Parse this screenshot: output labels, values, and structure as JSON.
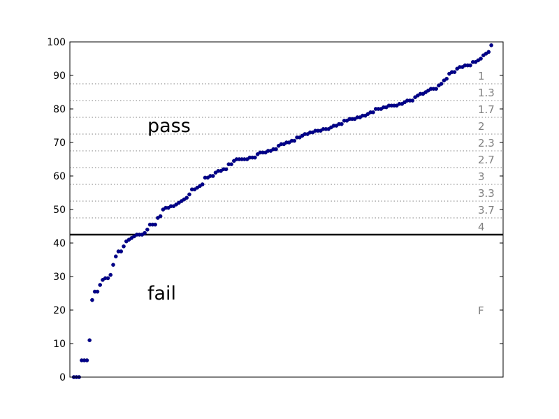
{
  "chart_data": {
    "type": "scatter",
    "title": "",
    "xlabel": "",
    "ylabel": "",
    "ylim": [
      0,
      100
    ],
    "xlim": [
      0,
      165
    ],
    "x_ticks_visible": false,
    "y_ticks": [
      "0",
      "10",
      "20",
      "30",
      "40",
      "50",
      "60",
      "70",
      "80",
      "90",
      "100"
    ],
    "grid": false,
    "colors": {
      "points": "#00008b",
      "threshold": "#000000",
      "grade_lines": "#999999",
      "grade_text": "#808080"
    },
    "pass_threshold": 42.5,
    "regions": [
      {
        "text": "pass",
        "y": 75
      },
      {
        "text": "fail",
        "y": 25
      }
    ],
    "grade_boundaries": [
      87.5,
      82.5,
      77.5,
      72.5,
      67.5,
      62.5,
      57.5,
      52.5,
      47.5
    ],
    "grade_labels": [
      {
        "text": "1",
        "y": 90
      },
      {
        "text": "1.3",
        "y": 85
      },
      {
        "text": "1.7",
        "y": 80
      },
      {
        "text": "2",
        "y": 75
      },
      {
        "text": "2.3",
        "y": 70
      },
      {
        "text": "2.7",
        "y": 65
      },
      {
        "text": "3",
        "y": 60
      },
      {
        "text": "3.3",
        "y": 55
      },
      {
        "text": "3.7",
        "y": 50
      },
      {
        "text": "4",
        "y": 45
      },
      {
        "text": "F",
        "y": 20
      }
    ],
    "points_sorted": [
      0,
      0,
      0,
      5,
      5,
      5,
      11,
      23,
      25.5,
      25.5,
      27.5,
      29,
      29.5,
      29.5,
      30.5,
      33.5,
      36,
      37.5,
      37.5,
      39,
      40.5,
      41,
      41.5,
      42,
      42.5,
      42.5,
      42.5,
      43,
      44,
      45.5,
      45.5,
      45.5,
      47.5,
      48,
      50,
      50.5,
      50.5,
      51,
      51,
      51.5,
      52,
      52.5,
      53,
      53.5,
      54.5,
      56,
      56,
      56.5,
      57,
      57.5,
      59.5,
      59.5,
      60,
      60,
      61,
      61.5,
      61.5,
      62,
      62,
      63.5,
      63.5,
      64.5,
      65,
      65,
      65,
      65,
      65,
      65.5,
      65.5,
      65.5,
      66.5,
      67,
      67,
      67,
      67.5,
      67.5,
      68,
      68,
      69,
      69.5,
      69.5,
      70,
      70,
      70.5,
      70.5,
      71.5,
      71.5,
      72,
      72.5,
      72.5,
      73,
      73,
      73.5,
      73.5,
      73.5,
      74,
      74,
      74,
      74.5,
      75,
      75,
      75.5,
      75.5,
      76.5,
      76.5,
      77,
      77,
      77,
      77.5,
      77.5,
      78,
      78,
      78.5,
      79,
      79,
      80,
      80,
      80,
      80.5,
      80.5,
      81,
      81,
      81,
      81,
      81.5,
      81.5,
      82,
      82.5,
      82.5,
      82.5,
      83.5,
      84,
      84.5,
      84.5,
      85,
      85.5,
      86,
      86,
      86,
      87,
      87.5,
      88.5,
      89,
      90.5,
      91,
      91,
      92,
      92.5,
      92.5,
      93,
      93,
      93,
      94,
      94,
      94.5,
      95,
      96,
      96.5,
      97,
      99
    ]
  }
}
